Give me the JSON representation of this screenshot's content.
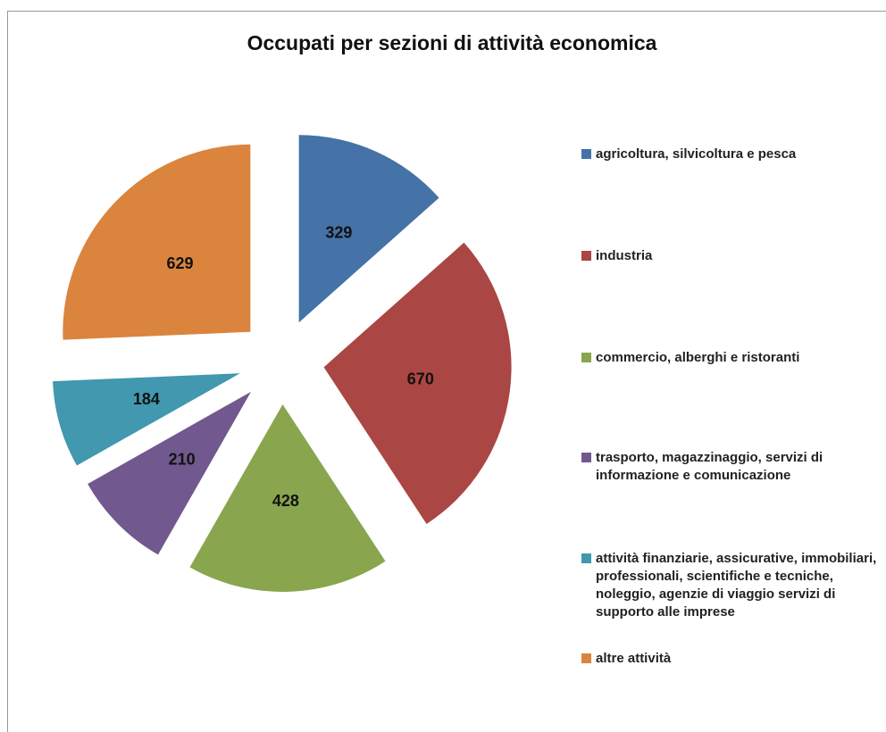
{
  "chart_data": {
    "type": "pie",
    "title": "Occupati per sezioni di attività economica",
    "categories": [
      "agricoltura, silvicoltura  e pesca",
      "industria",
      "commercio, alberghi e ristoranti",
      "trasporto, magazzinaggio, servizi di informazione e comunicazione",
      "attività finanziarie, assicurative, immobiliari, professionali, scientifiche e tecniche, noleggio, agenzie di viaggio servizi di supporto alle imprese",
      "altre attività"
    ],
    "values": [
      329,
      670,
      428,
      210,
      184,
      629
    ],
    "colors": [
      "#4572a7",
      "#aa4643",
      "#89a54e",
      "#71588f",
      "#4198af",
      "#db843d"
    ],
    "exploded": true,
    "legend": "right"
  }
}
